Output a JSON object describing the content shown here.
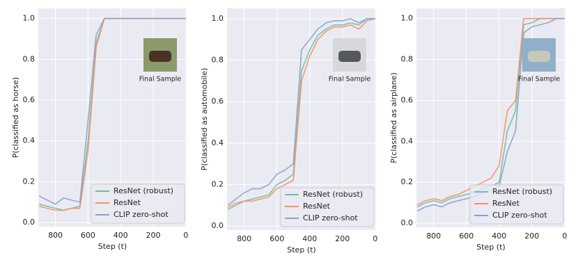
{
  "chart_data": [
    {
      "type": "line",
      "ylabel": "P(classified as horse)",
      "xlabel": "Step (t)",
      "annotation": "Final Sample",
      "x": [
        900,
        850,
        800,
        750,
        700,
        650,
        600,
        550,
        500,
        450,
        400,
        350,
        300,
        250,
        200,
        150,
        100,
        50,
        0
      ],
      "xlim": [
        905,
        -5
      ],
      "xticks": [
        800,
        600,
        400,
        200,
        0
      ],
      "ylim": [
        -0.02,
        1.05
      ],
      "yticks": [
        {
          "value": 0,
          "label": "0.0"
        },
        0.2,
        0.4,
        0.6,
        0.8,
        {
          "value": 1,
          "label": "1.0"
        }
      ],
      "grid": true,
      "legend": "lower right",
      "series": [
        {
          "name": "ResNet (robust)",
          "color": "#66c2a5",
          "values": [
            0.09,
            0.08,
            0.07,
            0.06,
            0.07,
            0.08,
            0.4,
            0.88,
            1,
            1,
            1,
            1,
            1,
            1,
            1,
            1,
            1,
            1,
            1
          ]
        },
        {
          "name": "ResNet",
          "color": "#fc8d62",
          "values": [
            0.08,
            0.07,
            0.06,
            0.06,
            0.07,
            0.07,
            0.35,
            0.86,
            1,
            1,
            1,
            1,
            1,
            1,
            1,
            1,
            1,
            1,
            1
          ]
        },
        {
          "name": "CLIP zero-shot",
          "color": "#8da0cb",
          "values": [
            0.13,
            0.11,
            0.09,
            0.12,
            0.11,
            0.1,
            0.5,
            0.92,
            1,
            1,
            1,
            1,
            1,
            1,
            1,
            1,
            1,
            1,
            1
          ]
        }
      ]
    },
    {
      "type": "line",
      "ylabel": "P(classified as automobile)",
      "xlabel": "Step (t)",
      "annotation": "Final Sample",
      "x": [
        900,
        850,
        800,
        750,
        700,
        650,
        600,
        550,
        500,
        450,
        400,
        350,
        300,
        250,
        200,
        150,
        100,
        50,
        0
      ],
      "xlim": [
        905,
        -5
      ],
      "xticks": [
        800,
        600,
        400,
        200,
        0
      ],
      "ylim": [
        -0.02,
        1.05
      ],
      "yticks": [
        {
          "value": 0,
          "label": "0.0"
        },
        0.2,
        0.4,
        0.6,
        0.8,
        {
          "value": 1,
          "label": "1.0"
        }
      ],
      "grid": true,
      "legend": "lower right",
      "series": [
        {
          "name": "ResNet (robust)",
          "color": "#66c2a5",
          "values": [
            0.08,
            0.1,
            0.12,
            0.13,
            0.14,
            0.15,
            0.2,
            0.22,
            0.25,
            0.75,
            0.85,
            0.92,
            0.95,
            0.97,
            0.97,
            0.98,
            0.97,
            1,
            1
          ]
        },
        {
          "name": "ResNet",
          "color": "#fc8d62",
          "values": [
            0.09,
            0.11,
            0.12,
            0.12,
            0.13,
            0.14,
            0.18,
            0.2,
            0.22,
            0.7,
            0.82,
            0.9,
            0.94,
            0.96,
            0.96,
            0.97,
            0.95,
            0.99,
            1
          ]
        },
        {
          "name": "CLIP zero-shot",
          "color": "#8da0cb",
          "values": [
            0.1,
            0.13,
            0.16,
            0.18,
            0.18,
            0.2,
            0.25,
            0.27,
            0.3,
            0.85,
            0.9,
            0.95,
            0.98,
            0.99,
            0.99,
            1,
            0.98,
            1,
            1
          ]
        }
      ]
    },
    {
      "type": "line",
      "ylabel": "P(classified as airplane)",
      "xlabel": "Step (t)",
      "annotation": "Final Sample",
      "x": [
        900,
        850,
        800,
        750,
        700,
        650,
        600,
        550,
        500,
        450,
        400,
        350,
        300,
        250,
        200,
        150,
        100,
        50,
        0
      ],
      "xlim": [
        905,
        -5
      ],
      "xticks": [
        800,
        600,
        400,
        200,
        0
      ],
      "ylim": [
        -0.02,
        1.05
      ],
      "yticks": [
        {
          "value": 0,
          "label": "0.0"
        },
        0.2,
        0.4,
        0.6,
        0.8,
        {
          "value": 1,
          "label": "1.0"
        }
      ],
      "grid": true,
      "legend": "lower right",
      "series": [
        {
          "name": "ResNet (robust)",
          "color": "#66c2a5",
          "values": [
            0.08,
            0.1,
            0.11,
            0.1,
            0.12,
            0.13,
            0.14,
            0.15,
            0.17,
            0.18,
            0.2,
            0.45,
            0.55,
            0.97,
            0.98,
            1,
            1,
            1,
            1
          ]
        },
        {
          "name": "ResNet",
          "color": "#fc8d62",
          "values": [
            0.09,
            0.11,
            0.12,
            0.11,
            0.13,
            0.14,
            0.16,
            0.18,
            0.2,
            0.22,
            0.28,
            0.55,
            0.6,
            1,
            1,
            1,
            1,
            1,
            1
          ]
        },
        {
          "name": "CLIP zero-shot",
          "color": "#8da0cb",
          "values": [
            0.06,
            0.08,
            0.09,
            0.08,
            0.1,
            0.11,
            0.12,
            0.13,
            0.15,
            0.16,
            0.18,
            0.35,
            0.45,
            0.93,
            0.96,
            0.97,
            0.98,
            1,
            1
          ]
        }
      ]
    }
  ]
}
